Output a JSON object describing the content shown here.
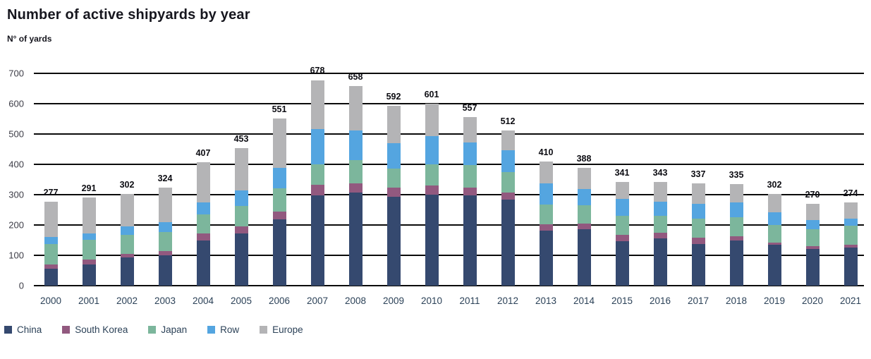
{
  "title": "Number of active shipyards by year",
  "subtitle": "N° of yards",
  "chart_data": {
    "type": "bar",
    "stacked": true,
    "title": "Number of active shipyards by year",
    "ylabel": "N° of yards",
    "xlabel": "",
    "ylim": [
      0,
      700
    ],
    "yticks": [
      0,
      100,
      200,
      300,
      400,
      500,
      600,
      700
    ],
    "grid": true,
    "legend_position": "bottom",
    "categories": [
      "2000",
      "2001",
      "2002",
      "2003",
      "2004",
      "2005",
      "2006",
      "2007",
      "2008",
      "2009",
      "2010",
      "2011",
      "2012",
      "2013",
      "2014",
      "2015",
      "2016",
      "2017",
      "2018",
      "2019",
      "2020",
      "2021"
    ],
    "series": [
      {
        "name": "China",
        "color": "#35496f",
        "values": [
          55,
          70,
          93,
          100,
          150,
          173,
          218,
          298,
          308,
          292,
          300,
          298,
          284,
          182,
          186,
          147,
          155,
          138,
          148,
          134,
          122,
          125
        ]
      },
      {
        "name": "South Korea",
        "color": "#92597f",
        "values": [
          15,
          16,
          12,
          15,
          22,
          23,
          27,
          35,
          30,
          31,
          30,
          26,
          23,
          21,
          19,
          20,
          19,
          20,
          15,
          8,
          8,
          9
        ]
      },
      {
        "name": "Japan",
        "color": "#7cb69c",
        "values": [
          68,
          65,
          63,
          62,
          64,
          66,
          76,
          68,
          76,
          63,
          71,
          73,
          68,
          65,
          60,
          63,
          57,
          64,
          62,
          58,
          57,
          64
        ]
      },
      {
        "name": "Row",
        "color": "#54a5e0",
        "values": [
          22,
          22,
          28,
          33,
          38,
          52,
          68,
          116,
          98,
          85,
          92,
          75,
          72,
          69,
          54,
          57,
          47,
          48,
          49,
          43,
          29,
          22
        ]
      },
      {
        "name": "Europe",
        "color": "#b4b4b6",
        "values": [
          117,
          118,
          106,
          114,
          133,
          139,
          162,
          161,
          146,
          121,
          108,
          85,
          65,
          73,
          69,
          54,
          65,
          67,
          61,
          59,
          54,
          54
        ]
      }
    ],
    "totals": [
      277,
      291,
      302,
      324,
      407,
      453,
      551,
      678,
      658,
      592,
      601,
      557,
      512,
      410,
      388,
      341,
      343,
      337,
      335,
      302,
      270,
      274
    ]
  }
}
